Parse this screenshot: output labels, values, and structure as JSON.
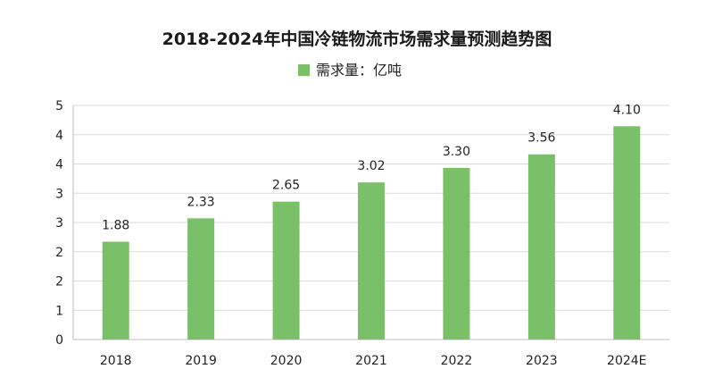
{
  "chart_data": {
    "type": "bar",
    "title": "2018-2024年中国冷链物流市场需求量预测趋势图",
    "legend": "需求量：亿吨",
    "legend_position": "top-center",
    "categories": [
      "2018",
      "2019",
      "2020",
      "2021",
      "2022",
      "2023",
      "2024E"
    ],
    "values": [
      1.88,
      2.33,
      2.65,
      3.02,
      3.3,
      3.56,
      4.1
    ],
    "data_labels": [
      "1.88",
      "2.33",
      "2.65",
      "3.02",
      "3.30",
      "3.56",
      "4.10"
    ],
    "y_tick_labels": [
      "0",
      "1",
      "2",
      "2",
      "3",
      "3",
      "4",
      "4",
      "5"
    ],
    "ylim": [
      0,
      4.5
    ],
    "grid": true,
    "bar_color": "#7ac068",
    "xlabel": "",
    "ylabel": ""
  }
}
